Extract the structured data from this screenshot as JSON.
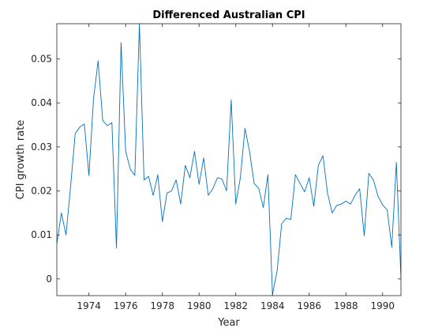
{
  "chart_data": {
    "type": "line",
    "title": "Differenced Australian CPI",
    "xlabel": "Year",
    "ylabel": "CPI growth rate",
    "xlim": [
      1972.25,
      1991
    ],
    "ylim": [
      -0.0038,
      0.058
    ],
    "xticks": [
      1974,
      1976,
      1978,
      1980,
      1982,
      1984,
      1986,
      1988,
      1990
    ],
    "yticks": [
      0,
      0.01,
      0.02,
      0.03,
      0.04,
      0.05
    ],
    "ytick_labels": [
      "0",
      "0.01",
      "0.02",
      "0.03",
      "0.04",
      "0.05"
    ],
    "grid": false,
    "line_color": "#0072bd",
    "series": [
      {
        "x": [
          1972.25,
          1972.5,
          1972.75,
          1973,
          1973.25,
          1973.5,
          1973.75,
          1974,
          1974.25,
          1974.5,
          1974.75,
          1975,
          1975.25,
          1975.5,
          1975.75,
          1976,
          1976.25,
          1976.5,
          1976.75,
          1977,
          1977.25,
          1977.5,
          1977.75,
          1978,
          1978.25,
          1978.5,
          1978.75,
          1979,
          1979.25,
          1979.5,
          1979.75,
          1980,
          1980.25,
          1980.5,
          1980.75,
          1981,
          1981.25,
          1981.5,
          1981.75,
          1982,
          1982.25,
          1982.5,
          1982.75,
          1983,
          1983.25,
          1983.5,
          1983.75,
          1984,
          1984.25,
          1984.5,
          1984.75,
          1985,
          1985.25,
          1985.5,
          1985.75,
          1986,
          1986.25,
          1986.5,
          1986.75,
          1987,
          1987.25,
          1987.5,
          1987.75,
          1988,
          1988.25,
          1988.5,
          1988.75,
          1989,
          1989.25,
          1989.5,
          1989.75,
          1990,
          1990.25,
          1990.5,
          1990.75,
          1991
        ],
        "values": [
          0.008,
          0.015,
          0.01,
          0.021,
          0.033,
          0.0345,
          0.0352,
          0.0235,
          0.041,
          0.0496,
          0.036,
          0.0348,
          0.0355,
          0.007,
          0.0537,
          0.029,
          0.025,
          0.0235,
          0.058,
          0.0225,
          0.0233,
          0.019,
          0.0237,
          0.013,
          0.0195,
          0.02,
          0.0225,
          0.017,
          0.0258,
          0.023,
          0.029,
          0.0215,
          0.0275,
          0.019,
          0.0205,
          0.023,
          0.0227,
          0.02,
          0.0407,
          0.017,
          0.023,
          0.0342,
          0.029,
          0.0217,
          0.0206,
          0.0162,
          0.0237,
          -0.0035,
          0.0017,
          0.0125,
          0.0138,
          0.0135,
          0.0237,
          0.0217,
          0.0198,
          0.023,
          0.0165,
          0.0258,
          0.028,
          0.0195,
          0.015,
          0.0167,
          0.017,
          0.0177,
          0.017,
          0.019,
          0.0205,
          0.0098,
          0.024,
          0.0225,
          0.0188,
          0.0168,
          0.0157,
          0.0072,
          0.0265,
          0.0002
        ]
      }
    ]
  }
}
